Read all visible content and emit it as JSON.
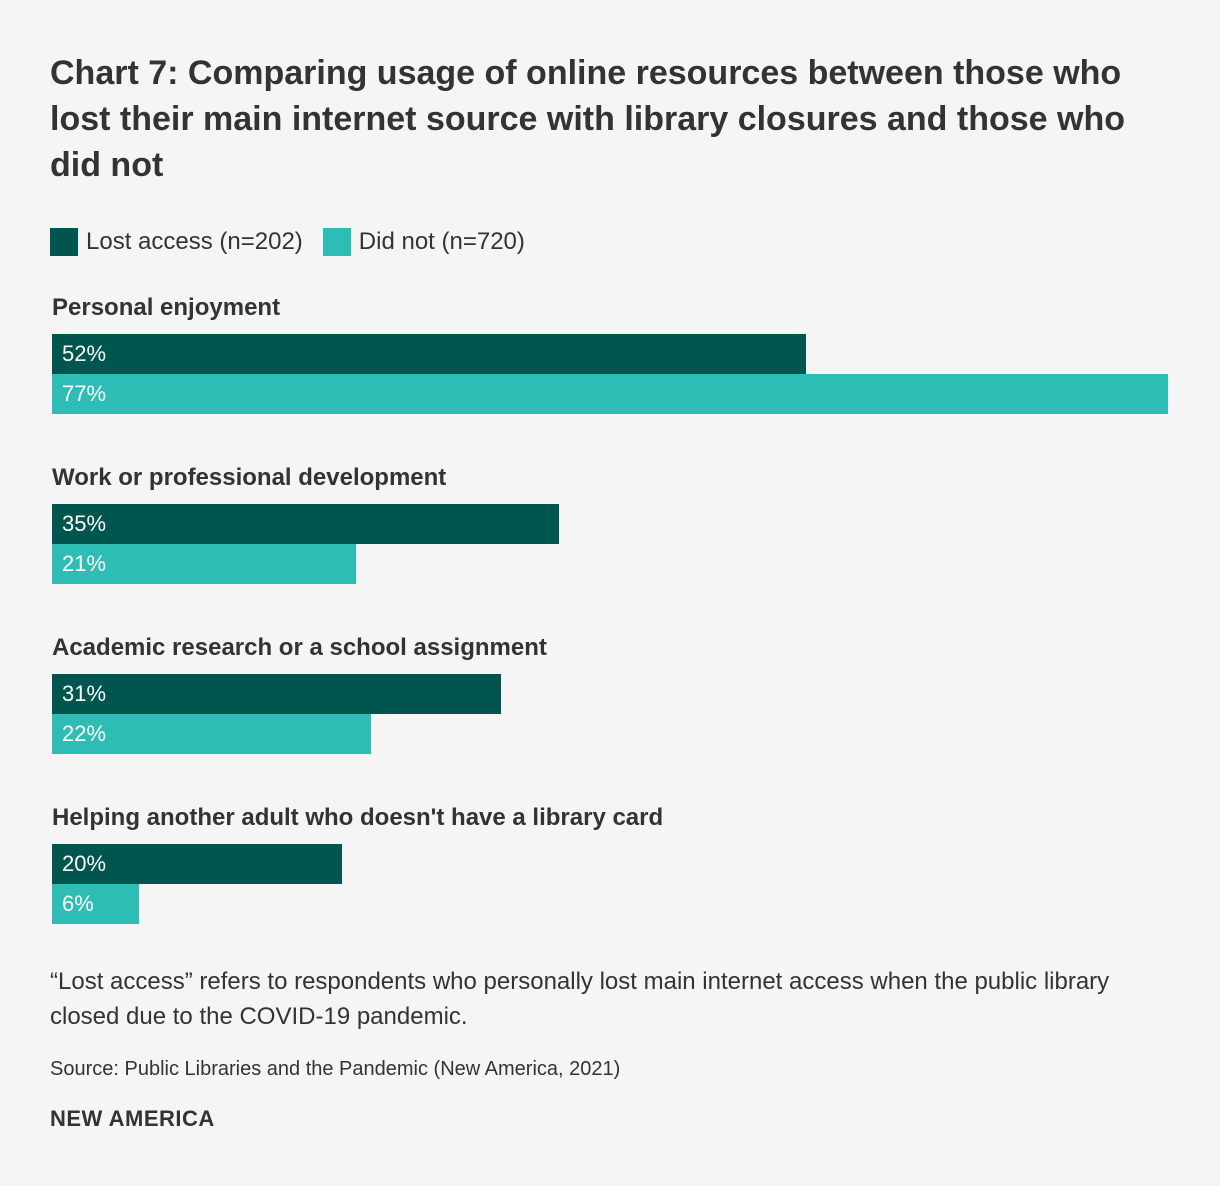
{
  "colors": {
    "lost_access": "#00554f",
    "did_not": "#2ebdb4",
    "text": "#333333",
    "background": "#f5f5f5"
  },
  "footnote": "“Lost access” refers to respondents who personally lost main internet access when the public library closed due to the COVID-19 pandemic.",
  "source": "Source: Public Libraries and the Pandemic (New America, 2021)",
  "brand": "NEW AMERICA",
  "chart_data": {
    "type": "bar",
    "orientation": "horizontal",
    "title": "Chart 7: Comparing usage of online resources between those who lost their main internet source with library closures and those who did not",
    "categories": [
      "Personal enjoyment",
      "Work or professional development",
      "Academic research or a school assignment",
      "Helping another adult who doesn't have a library card"
    ],
    "series": [
      {
        "name": "Lost access (n=202)",
        "color": "#00554f",
        "values": [
          52,
          35,
          31,
          20
        ]
      },
      {
        "name": "Did not (n=720)",
        "color": "#2ebdb4",
        "values": [
          77,
          21,
          22,
          6
        ]
      }
    ],
    "value_suffix": "%",
    "xlim": [
      0,
      77
    ],
    "grid": false,
    "legend_position": "top-left"
  }
}
